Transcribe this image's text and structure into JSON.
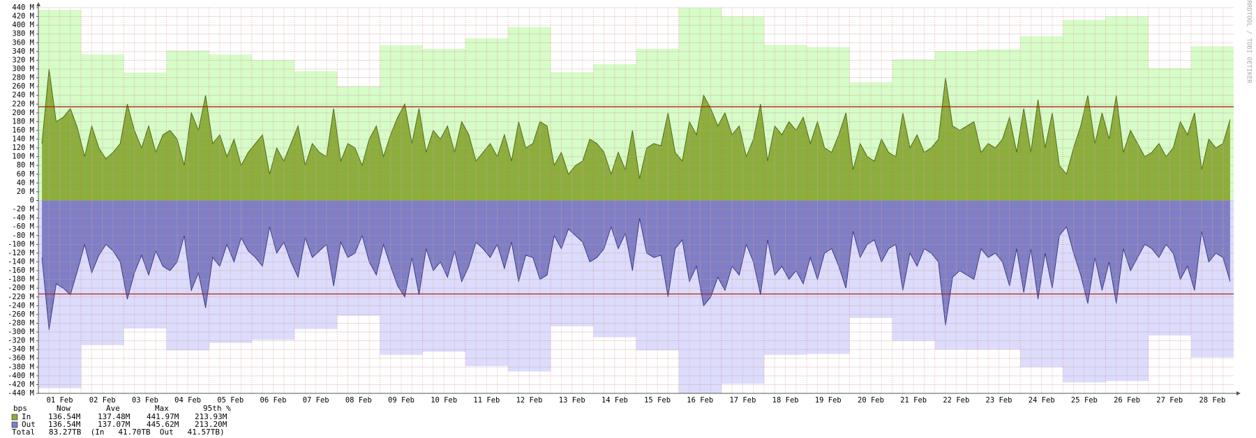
{
  "chart_data": {
    "type": "area",
    "watermark": "RRDTOOL / TOBI OETIKER",
    "categories": [
      "01 Feb",
      "02 Feb",
      "03 Feb",
      "04 Feb",
      "05 Feb",
      "06 Feb",
      "07 Feb",
      "08 Feb",
      "09 Feb",
      "10 Feb",
      "11 Feb",
      "12 Feb",
      "13 Feb",
      "14 Feb",
      "15 Feb",
      "16 Feb",
      "17 Feb",
      "18 Feb",
      "19 Feb",
      "20 Feb",
      "21 Feb",
      "22 Feb",
      "23 Feb",
      "24 Feb",
      "25 Feb",
      "26 Feb",
      "27 Feb",
      "28 Feb"
    ],
    "ylim": [
      -440,
      440
    ],
    "yticks": [
      {
        "value": 440,
        "label": "440 M"
      },
      {
        "value": 420,
        "label": "420 M"
      },
      {
        "value": 400,
        "label": "400 M"
      },
      {
        "value": 380,
        "label": "380 M"
      },
      {
        "value": 360,
        "label": "360 M"
      },
      {
        "value": 340,
        "label": "340 M"
      },
      {
        "value": 320,
        "label": "320 M"
      },
      {
        "value": 300,
        "label": "300 M"
      },
      {
        "value": 280,
        "label": "280 M"
      },
      {
        "value": 260,
        "label": "260 M"
      },
      {
        "value": 240,
        "label": "240 M"
      },
      {
        "value": 220,
        "label": "220 M"
      },
      {
        "value": 200,
        "label": "200 M"
      },
      {
        "value": 180,
        "label": "180 M"
      },
      {
        "value": 160,
        "label": "160 M"
      },
      {
        "value": 140,
        "label": "140 M"
      },
      {
        "value": 120,
        "label": "120 M"
      },
      {
        "value": 100,
        "label": "100 M"
      },
      {
        "value": 80,
        "label": "80 M"
      },
      {
        "value": 60,
        "label": "60 M"
      },
      {
        "value": 40,
        "label": "40 M"
      },
      {
        "value": 20,
        "label": "20 M"
      },
      0,
      {
        "value": -20,
        "label": "-20 M"
      },
      {
        "value": -40,
        "label": "-40 M"
      },
      {
        "value": -60,
        "label": "-60 M"
      },
      {
        "value": -80,
        "label": "-80 M"
      },
      {
        "value": -100,
        "label": "-100 M"
      },
      {
        "value": -120,
        "label": "-120 M"
      },
      {
        "value": -140,
        "label": "-140 M"
      },
      {
        "value": -160,
        "label": "-160 M"
      },
      {
        "value": -180,
        "label": "-180 M"
      },
      {
        "value": -200,
        "label": "-200 M"
      },
      {
        "value": -220,
        "label": "-220 M"
      },
      {
        "value": -240,
        "label": "-240 M"
      },
      {
        "value": -260,
        "label": "-260 M"
      },
      {
        "value": -280,
        "label": "-280 M"
      },
      {
        "value": -300,
        "label": "-300 M"
      },
      {
        "value": -320,
        "label": "-320 M"
      },
      {
        "value": -340,
        "label": "-340 M"
      },
      {
        "value": -360,
        "label": "-360 M"
      },
      {
        "value": -380,
        "label": "-380 M"
      },
      {
        "value": -400,
        "label": "-400 M"
      },
      {
        "value": -420,
        "label": "-420 M"
      },
      {
        "value": -440,
        "label": "-440 M"
      }
    ],
    "grid": true,
    "envelopes": [
      {
        "color": "#d6fcc8",
        "values": [
          435,
          333,
          292,
          342,
          333,
          321,
          295,
          261,
          354,
          346,
          370,
          396,
          293,
          311,
          346,
          441.97,
          420,
          355,
          350,
          270,
          322,
          341,
          345,
          375,
          412,
          420,
          302,
          352
        ]
      },
      {
        "color": "#dcdcfc",
        "values": [
          -428,
          -330,
          -292,
          -342,
          -325,
          -318,
          -293,
          -263,
          -352,
          -345,
          -378,
          -390,
          -287,
          -312,
          -342,
          -445.62,
          -418,
          -352,
          -350,
          -268,
          -320,
          -340,
          -340,
          -380,
          -415,
          -412,
          -308,
          -358
        ]
      }
    ],
    "series": [
      {
        "name": "In",
        "color": "#8cae3c",
        "edge": "#4e6b12",
        "values": [
          [
            130,
            300,
            180,
            190,
            210,
            165
          ],
          [
            100,
            170,
            120,
            95,
            110,
            130
          ],
          [
            220,
            160,
            120,
            170,
            110,
            150
          ],
          [
            160,
            140,
            80,
            200,
            160,
            240
          ],
          [
            130,
            150,
            100,
            140,
            80,
            110
          ],
          [
            130,
            150,
            60,
            120,
            90,
            130
          ],
          [
            170,
            80,
            130,
            110,
            100,
            210
          ],
          [
            90,
            130,
            120,
            80,
            140,
            170
          ],
          [
            100,
            150,
            190,
            220,
            130,
            210
          ],
          [
            110,
            160,
            140,
            170,
            110,
            180
          ],
          [
            150,
            90,
            110,
            130,
            100,
            150
          ],
          [
            90,
            180,
            120,
            130,
            180,
            170
          ],
          [
            80,
            110,
            60,
            80,
            90,
            140
          ],
          [
            130,
            110,
            60,
            110,
            70,
            160
          ],
          [
            50,
            120,
            130,
            125,
            200,
            110
          ],
          [
            90,
            180,
            150,
            240,
            210,
            170
          ],
          [
            200,
            150,
            170,
            100,
            140,
            220
          ],
          [
            90,
            170,
            150,
            180,
            160,
            190
          ],
          [
            130,
            180,
            120,
            110,
            150,
            200
          ],
          [
            70,
            130,
            100,
            90,
            140,
            110
          ],
          [
            100,
            200,
            120,
            150,
            110,
            120
          ],
          [
            140,
            280,
            170,
            160,
            170,
            180
          ],
          [
            110,
            130,
            120,
            140,
            190,
            110
          ],
          [
            210,
            110,
            230,
            120,
            200,
            80
          ],
          [
            60,
            120,
            170,
            240,
            130,
            200
          ],
          [
            140,
            240,
            110,
            160,
            130,
            100
          ],
          [
            110,
            130,
            100,
            120,
            180,
            150
          ],
          [
            200,
            70,
            140,
            120,
            130,
            185
          ]
        ]
      },
      {
        "name": "Out",
        "color": "#7f7fc6",
        "edge": "#3a3a86",
        "values": [
          [
            -130,
            -295,
            -190,
            -200,
            -215,
            -160
          ],
          [
            -100,
            -165,
            -125,
            -100,
            -115,
            -140
          ],
          [
            -225,
            -165,
            -125,
            -170,
            -115,
            -150
          ],
          [
            -160,
            -140,
            -80,
            -205,
            -165,
            -245
          ],
          [
            -130,
            -150,
            -100,
            -140,
            -85,
            -115
          ],
          [
            -130,
            -150,
            -60,
            -120,
            -95,
            -140
          ],
          [
            -175,
            -85,
            -130,
            -115,
            -100,
            -195
          ],
          [
            -95,
            -130,
            -120,
            -80,
            -140,
            -170
          ],
          [
            -100,
            -150,
            -195,
            -220,
            -130,
            -215
          ],
          [
            -110,
            -160,
            -140,
            -175,
            -115,
            -185
          ],
          [
            -150,
            -95,
            -110,
            -130,
            -100,
            -155
          ],
          [
            -95,
            -185,
            -125,
            -130,
            -180,
            -170
          ],
          [
            -80,
            -110,
            -65,
            -80,
            -95,
            -140
          ],
          [
            -130,
            -110,
            -60,
            -110,
            -75,
            -160
          ],
          [
            -40,
            -120,
            -130,
            -125,
            -220,
            -110
          ],
          [
            -90,
            -185,
            -150,
            -240,
            -220,
            -175
          ],
          [
            -205,
            -150,
            -170,
            -100,
            -140,
            -215
          ],
          [
            -90,
            -170,
            -150,
            -180,
            -160,
            -190
          ],
          [
            -130,
            -180,
            -120,
            -110,
            -150,
            -200
          ],
          [
            -70,
            -130,
            -100,
            -90,
            -140,
            -110
          ],
          [
            -100,
            -205,
            -120,
            -150,
            -110,
            -120
          ],
          [
            -140,
            -285,
            -175,
            -160,
            -170,
            -180
          ],
          [
            -110,
            -130,
            -120,
            -140,
            -195,
            -110
          ],
          [
            -210,
            -110,
            -225,
            -120,
            -200,
            -80
          ],
          [
            -60,
            -120,
            -170,
            -235,
            -130,
            -205
          ],
          [
            -140,
            -235,
            -110,
            -160,
            -130,
            -100
          ],
          [
            -110,
            -130,
            -100,
            -120,
            -180,
            -150
          ],
          [
            -205,
            -70,
            -140,
            -120,
            -130,
            -185
          ]
        ]
      }
    ],
    "percentile_lines": {
      "color": "#b22222",
      "values": [
        213.93,
        -213.2
      ]
    },
    "legend": {
      "header": [
        "bps",
        "Now",
        "Ave",
        "Max",
        "95th %"
      ],
      "rows": [
        [
          "136.54M",
          "137.48M",
          "441.97M",
          "213.93M"
        ],
        [
          "136.54M",
          "137.07M",
          "445.62M",
          "213.20M"
        ]
      ],
      "total": "Total   83.27TB  (In   41.70TB  Out   41.57TB)"
    }
  }
}
